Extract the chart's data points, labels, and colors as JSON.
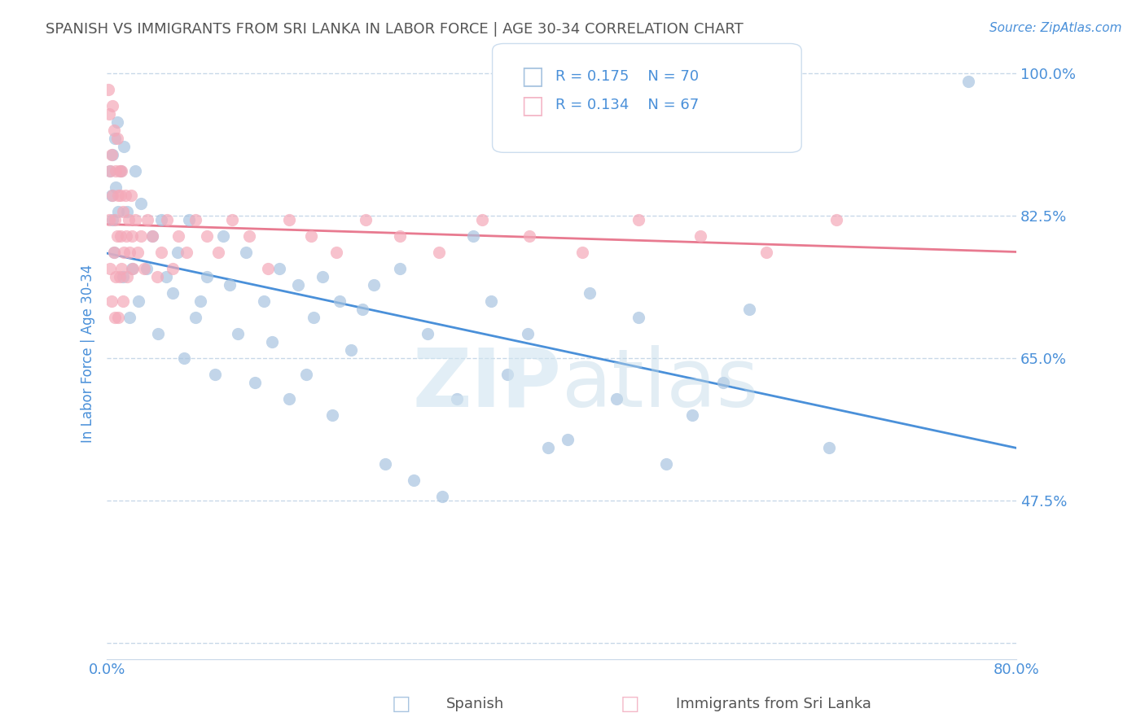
{
  "title": "SPANISH VS IMMIGRANTS FROM SRI LANKA IN LABOR FORCE | AGE 30-34 CORRELATION CHART",
  "source": "Source: ZipAtlas.com",
  "xlabel": "",
  "ylabel": "In Labor Force | Age 30-34",
  "xlim": [
    0.0,
    0.8
  ],
  "ylim": [
    0.28,
    1.03
  ],
  "xticks": [
    0.0,
    0.1,
    0.2,
    0.3,
    0.4,
    0.5,
    0.6,
    0.7,
    0.8
  ],
  "xticklabels": [
    "0.0%",
    "",
    "",
    "",
    "",
    "",
    "",
    "",
    "80.0%"
  ],
  "yticks": [
    0.3,
    0.475,
    0.65,
    0.825,
    1.0
  ],
  "yticklabels": [
    "",
    "47.5%",
    "65.0%",
    "82.5%",
    "100.0%"
  ],
  "legend_r1": "R = 0.175",
  "legend_n1": "N = 70",
  "legend_r2": "R = 0.134",
  "legend_n2": "N = 67",
  "legend_color1": "#a8c4e0",
  "legend_color2": "#f4b8c8",
  "scatter_color1": "#a8c4e0",
  "scatter_color2": "#f4a8b8",
  "line_color1": "#4a90d9",
  "line_color2": "#e87a90",
  "watermark": "ZIPatlas",
  "background_color": "#ffffff",
  "grid_color": "#c8d8e8",
  "title_color": "#555555",
  "axis_color": "#4a90d9",
  "spanish_x": [
    0.003,
    0.004,
    0.005,
    0.005,
    0.006,
    0.007,
    0.008,
    0.009,
    0.01,
    0.012,
    0.014,
    0.015,
    0.018,
    0.02,
    0.022,
    0.025,
    0.028,
    0.03,
    0.035,
    0.04,
    0.045,
    0.048,
    0.052,
    0.058,
    0.062,
    0.068,
    0.072,
    0.078,
    0.082,
    0.088,
    0.095,
    0.102,
    0.108,
    0.115,
    0.122,
    0.13,
    0.138,
    0.145,
    0.152,
    0.16,
    0.168,
    0.175,
    0.182,
    0.19,
    0.198,
    0.205,
    0.215,
    0.225,
    0.235,
    0.245,
    0.258,
    0.27,
    0.282,
    0.295,
    0.308,
    0.322,
    0.338,
    0.352,
    0.37,
    0.388,
    0.405,
    0.425,
    0.448,
    0.468,
    0.492,
    0.515,
    0.542,
    0.565,
    0.635,
    0.758
  ],
  "spanish_y": [
    0.88,
    0.85,
    0.82,
    0.9,
    0.78,
    0.92,
    0.86,
    0.94,
    0.83,
    0.88,
    0.75,
    0.91,
    0.83,
    0.7,
    0.76,
    0.88,
    0.72,
    0.84,
    0.76,
    0.8,
    0.68,
    0.82,
    0.75,
    0.73,
    0.78,
    0.65,
    0.82,
    0.7,
    0.72,
    0.75,
    0.63,
    0.8,
    0.74,
    0.68,
    0.78,
    0.62,
    0.72,
    0.67,
    0.76,
    0.6,
    0.74,
    0.63,
    0.7,
    0.75,
    0.58,
    0.72,
    0.66,
    0.71,
    0.74,
    0.52,
    0.76,
    0.5,
    0.68,
    0.48,
    0.6,
    0.8,
    0.72,
    0.63,
    0.68,
    0.54,
    0.55,
    0.73,
    0.6,
    0.7,
    0.52,
    0.58,
    0.62,
    0.71,
    0.54,
    0.99
  ],
  "srilanka_x": [
    0.001,
    0.002,
    0.002,
    0.003,
    0.003,
    0.004,
    0.004,
    0.005,
    0.005,
    0.006,
    0.006,
    0.007,
    0.007,
    0.008,
    0.008,
    0.009,
    0.009,
    0.01,
    0.01,
    0.011,
    0.011,
    0.012,
    0.012,
    0.013,
    0.013,
    0.014,
    0.014,
    0.015,
    0.016,
    0.017,
    0.018,
    0.019,
    0.02,
    0.021,
    0.022,
    0.023,
    0.025,
    0.027,
    0.03,
    0.033,
    0.036,
    0.04,
    0.044,
    0.048,
    0.053,
    0.058,
    0.063,
    0.07,
    0.078,
    0.088,
    0.098,
    0.11,
    0.125,
    0.142,
    0.16,
    0.18,
    0.202,
    0.228,
    0.258,
    0.292,
    0.33,
    0.372,
    0.418,
    0.468,
    0.522,
    0.58,
    0.642
  ],
  "srilanka_y": [
    0.98,
    0.82,
    0.95,
    0.88,
    0.76,
    0.9,
    0.72,
    0.85,
    0.96,
    0.78,
    0.93,
    0.82,
    0.7,
    0.88,
    0.75,
    0.92,
    0.8,
    0.85,
    0.7,
    0.88,
    0.75,
    0.8,
    0.85,
    0.76,
    0.88,
    0.72,
    0.83,
    0.78,
    0.85,
    0.8,
    0.75,
    0.82,
    0.78,
    0.85,
    0.8,
    0.76,
    0.82,
    0.78,
    0.8,
    0.76,
    0.82,
    0.8,
    0.75,
    0.78,
    0.82,
    0.76,
    0.8,
    0.78,
    0.82,
    0.8,
    0.78,
    0.82,
    0.8,
    0.76,
    0.82,
    0.8,
    0.78,
    0.82,
    0.8,
    0.78,
    0.82,
    0.8,
    0.78,
    0.82,
    0.8,
    0.78,
    0.82
  ]
}
